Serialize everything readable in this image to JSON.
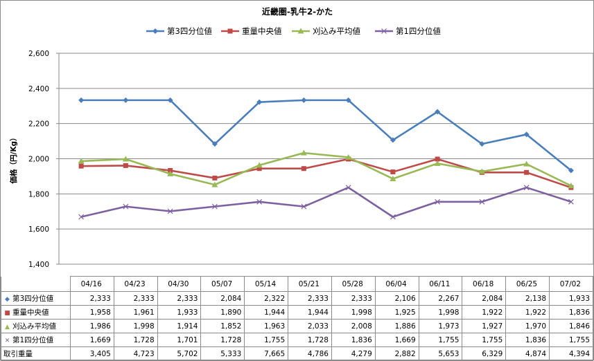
{
  "chart_data": {
    "type": "line",
    "title": "近畿圏-乳牛2-かた",
    "ylabel": "価格（円/Kg）",
    "ylim": [
      1400,
      2600
    ],
    "yticks": [
      "1,400",
      "1,600",
      "1,800",
      "2,000",
      "2,200",
      "2,400",
      "2,600"
    ],
    "yticks_values": [
      1400,
      1600,
      1800,
      2000,
      2200,
      2400,
      2600
    ],
    "grid": true,
    "legend_position": "top",
    "categories": [
      "04/16",
      "04/23",
      "04/30",
      "05/07",
      "05/14",
      "05/21",
      "05/28",
      "06/04",
      "06/11",
      "06/18",
      "06/25",
      "07/02"
    ],
    "series": [
      {
        "name": "第3四分位値",
        "color": "#4a7ebb",
        "marker": "diamond",
        "values": [
          2333,
          2333,
          2333,
          2084,
          2322,
          2333,
          2333,
          2106,
          2267,
          2084,
          2138,
          1933
        ],
        "labels": [
          "2,333",
          "2,333",
          "2,333",
          "2,084",
          "2,322",
          "2,333",
          "2,333",
          "2,106",
          "2,267",
          "2,084",
          "2,138",
          "1,933"
        ]
      },
      {
        "name": "重量中央値",
        "color": "#be4b48",
        "marker": "square",
        "values": [
          1958,
          1961,
          1933,
          1890,
          1944,
          1944,
          1998,
          1925,
          1998,
          1922,
          1922,
          1836
        ],
        "labels": [
          "1,958",
          "1,961",
          "1,933",
          "1,890",
          "1,944",
          "1,944",
          "1,998",
          "1,925",
          "1,998",
          "1,922",
          "1,922",
          "1,836"
        ]
      },
      {
        "name": "刈込み平均値",
        "color": "#98b954",
        "marker": "triangle",
        "values": [
          1986,
          1998,
          1914,
          1852,
          1963,
          2033,
          2008,
          1886,
          1973,
          1927,
          1970,
          1846
        ],
        "labels": [
          "1,986",
          "1,998",
          "1,914",
          "1,852",
          "1,963",
          "2,033",
          "2,008",
          "1,886",
          "1,973",
          "1,927",
          "1,970",
          "1,846"
        ]
      },
      {
        "name": "第1四分位値",
        "color": "#7d60a0",
        "marker": "x",
        "values": [
          1669,
          1728,
          1701,
          1728,
          1755,
          1728,
          1836,
          1669,
          1755,
          1755,
          1836,
          1755
        ],
        "labels": [
          "1,669",
          "1,728",
          "1,701",
          "1,728",
          "1,755",
          "1,728",
          "1,836",
          "1,669",
          "1,755",
          "1,755",
          "1,836",
          "1,755"
        ]
      }
    ],
    "extra_rows": [
      {
        "name": "取引重量",
        "values": [
          3405,
          4723,
          5702,
          5333,
          7665,
          4786,
          4279,
          2882,
          5653,
          6329,
          4874,
          4394
        ],
        "labels": [
          "3,405",
          "4,723",
          "5,702",
          "5,333",
          "7,665",
          "4,786",
          "4,279",
          "2,882",
          "5,653",
          "6,329",
          "4,874",
          "4,394"
        ]
      }
    ]
  }
}
